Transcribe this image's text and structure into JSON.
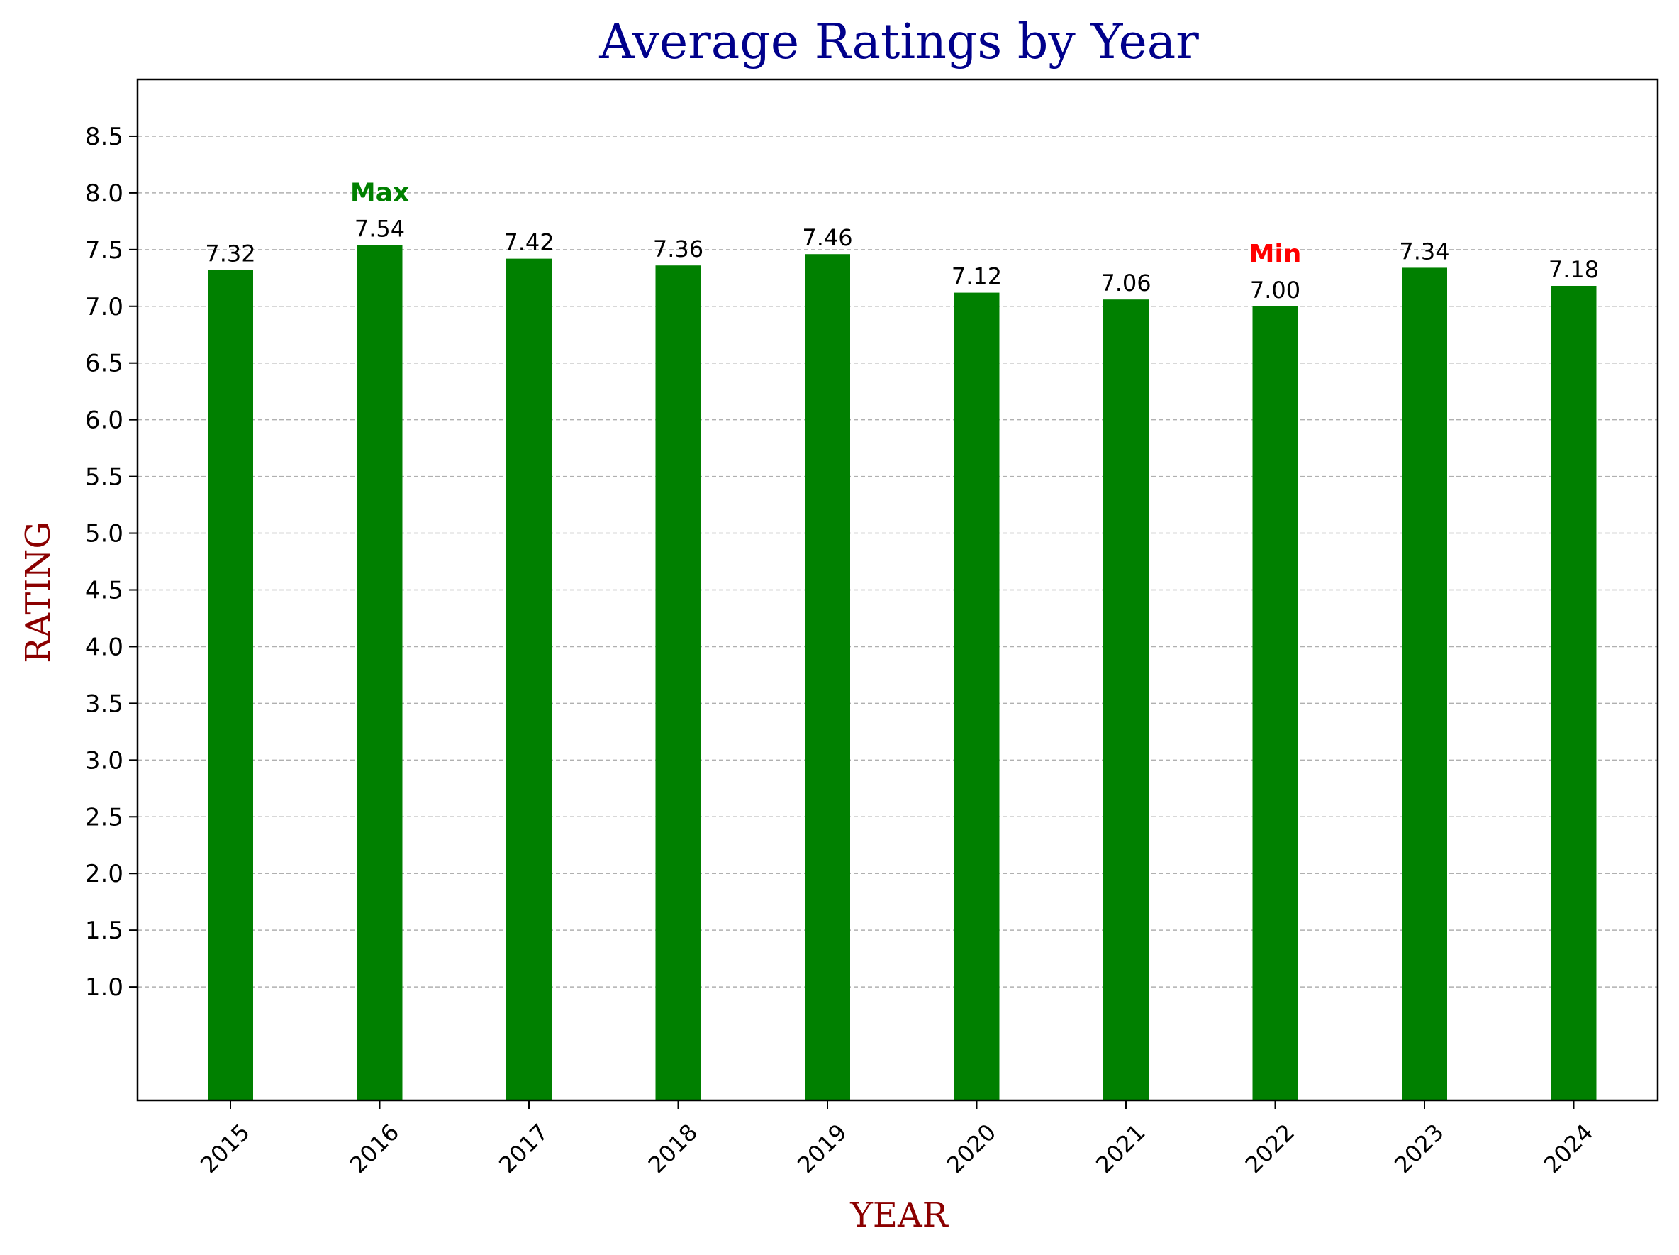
{
  "chart_data": {
    "type": "bar",
    "title": "Average Ratings by Year",
    "xlabel": "YEAR",
    "ylabel": "RATING",
    "categories": [
      "2015",
      "2016",
      "2017",
      "2018",
      "2019",
      "2020",
      "2021",
      "2022",
      "2023",
      "2024"
    ],
    "values": [
      7.32,
      7.54,
      7.42,
      7.36,
      7.46,
      7.12,
      7.06,
      7.0,
      7.34,
      7.18
    ],
    "value_labels": [
      "7.32",
      "7.54",
      "7.42",
      "7.36",
      "7.46",
      "7.12",
      "7.06",
      "7.00",
      "7.34",
      "7.18"
    ],
    "ylim": [
      0,
      9.0
    ],
    "yticks": [
      "1.0",
      "1.5",
      "2.0",
      "2.5",
      "3.0",
      "3.5",
      "4.0",
      "4.5",
      "5.0",
      "5.5",
      "6.0",
      "6.5",
      "7.0",
      "7.5",
      "8.0",
      "8.5"
    ],
    "grid": "horizontal dashed",
    "bar_color": "#008000",
    "annotations": [
      {
        "text": "Max",
        "category": "2016",
        "color": "#008000"
      },
      {
        "text": "Min",
        "category": "2022",
        "color": "#ff0000"
      }
    ],
    "title_color": "#00008b",
    "label_color": "#8b0000"
  }
}
